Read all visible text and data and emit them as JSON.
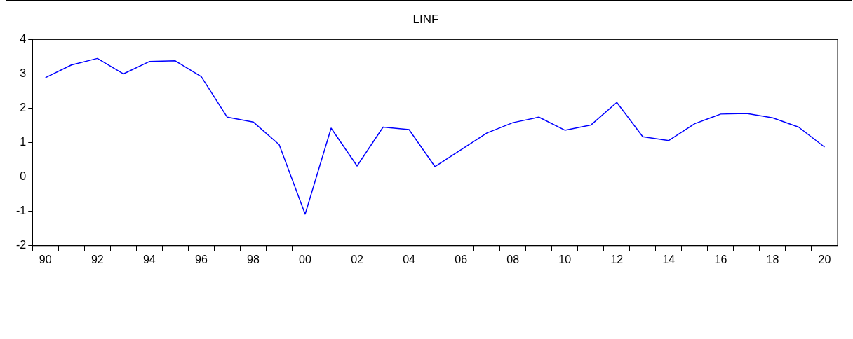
{
  "chart_data": {
    "type": "line",
    "title": "LINF",
    "categories": [
      "90",
      null,
      "92",
      null,
      "94",
      null,
      "96",
      null,
      "98",
      null,
      "00",
      null,
      "02",
      null,
      "04",
      null,
      "06",
      null,
      "08",
      null,
      "10",
      null,
      "12",
      null,
      "14",
      null,
      "16",
      null,
      "18",
      null,
      "20"
    ],
    "series": [
      {
        "color": "#0000ff",
        "values": [
          2.89,
          3.26,
          3.45,
          3.0,
          3.36,
          3.38,
          2.92,
          1.74,
          1.6,
          0.94,
          -1.08,
          1.42,
          0.32,
          1.45,
          1.38,
          0.3,
          0.79,
          1.28,
          1.58,
          1.74,
          1.36,
          1.51,
          2.17,
          1.17,
          1.06,
          1.55,
          1.83,
          1.85,
          1.72,
          1.45,
          0.87
        ]
      }
    ],
    "ylim": [
      -2,
      4
    ],
    "yticks": [
      -2,
      -1,
      0,
      1,
      2,
      3,
      4
    ],
    "grid": false,
    "legend": false,
    "marker": "none",
    "line_style": "solid"
  }
}
